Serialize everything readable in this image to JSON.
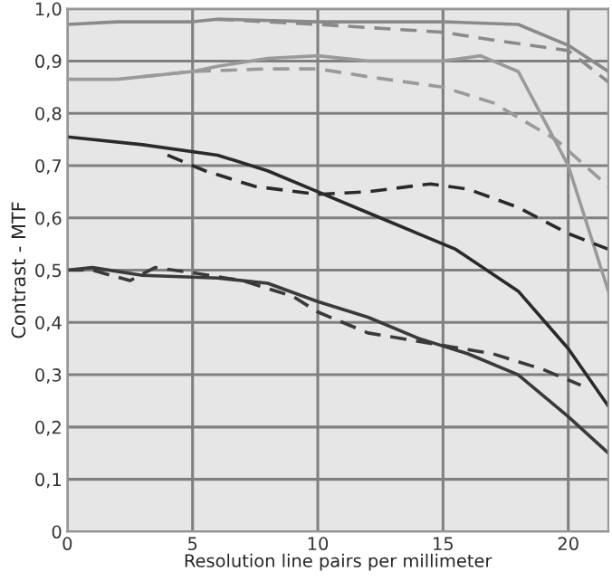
{
  "chart_data": {
    "type": "line",
    "xlabel": "Resolution line pairs per millimeter",
    "ylabel": "Contrast - MTF",
    "xlim": [
      0,
      21.6
    ],
    "ylim": [
      0,
      1.0
    ],
    "xticks": [
      0,
      5,
      10,
      15,
      20
    ],
    "yticks": [
      {
        "value": 0,
        "label": "0"
      },
      {
        "value": 0.1,
        "label": "0,1"
      },
      {
        "value": 0.2,
        "label": "0,2"
      },
      {
        "value": 0.3,
        "label": "0,3"
      },
      {
        "value": 0.4,
        "label": "0,4"
      },
      {
        "value": 0.5,
        "label": "0,5"
      },
      {
        "value": 0.6,
        "label": "0,6"
      },
      {
        "value": 0.7,
        "label": "0,7"
      },
      {
        "value": 0.8,
        "label": "0,8"
      },
      {
        "value": 0.9,
        "label": "0,9"
      },
      {
        "value": 1.0,
        "label": "1,0"
      }
    ],
    "grid": true,
    "marker": "none",
    "series": [
      {
        "color": "#8a8a8a",
        "line_style": "solid",
        "x": [
          0,
          2,
          5,
          6,
          10,
          15,
          18,
          20,
          21.6
        ],
        "values": [
          0.97,
          0.975,
          0.975,
          0.98,
          0.975,
          0.975,
          0.97,
          0.93,
          0.88
        ]
      },
      {
        "color": "#8a8a8a",
        "line_style": "dashed",
        "x": [
          6,
          10,
          15,
          17,
          20,
          21.6
        ],
        "values": [
          0.98,
          0.97,
          0.955,
          0.94,
          0.92,
          0.86
        ]
      },
      {
        "color": "#9a9a9a",
        "line_style": "solid",
        "x": [
          0,
          2,
          5,
          6,
          8,
          10,
          12,
          15,
          16.5,
          18,
          20,
          21.6
        ],
        "values": [
          0.865,
          0.865,
          0.88,
          0.89,
          0.905,
          0.91,
          0.9,
          0.9,
          0.91,
          0.88,
          0.7,
          0.46
        ]
      },
      {
        "color": "#9a9a9a",
        "line_style": "dashed",
        "x": [
          3,
          5,
          8,
          10,
          12,
          15,
          17,
          19.5,
          21.6
        ],
        "values": [
          0.87,
          0.88,
          0.885,
          0.885,
          0.87,
          0.85,
          0.82,
          0.75,
          0.66
        ]
      },
      {
        "color": "#2a2a2a",
        "line_style": "solid",
        "x": [
          0,
          3,
          6,
          8,
          10,
          12,
          14,
          15.5,
          18,
          20,
          21.6
        ],
        "values": [
          0.755,
          0.74,
          0.72,
          0.69,
          0.65,
          0.61,
          0.57,
          0.54,
          0.46,
          0.35,
          0.24
        ]
      },
      {
        "color": "#2a2a2a",
        "line_style": "dashed",
        "x": [
          4,
          5.5,
          7.5,
          10,
          12,
          14.5,
          16,
          18,
          20,
          21.6
        ],
        "values": [
          0.72,
          0.69,
          0.66,
          0.645,
          0.65,
          0.665,
          0.655,
          0.62,
          0.57,
          0.54
        ]
      },
      {
        "color": "#3a3a3a",
        "line_style": "solid",
        "x": [
          0,
          1,
          3,
          6,
          8,
          10,
          12,
          14,
          16,
          18,
          20,
          21.6
        ],
        "values": [
          0.5,
          0.505,
          0.49,
          0.485,
          0.475,
          0.44,
          0.41,
          0.37,
          0.34,
          0.3,
          0.22,
          0.15
        ]
      },
      {
        "color": "#3a3a3a",
        "line_style": "dashed",
        "x": [
          0,
          1,
          2.5,
          3.5,
          5,
          7,
          9,
          10,
          12,
          14.5,
          17,
          19,
          20.5
        ],
        "values": [
          0.5,
          0.5,
          0.48,
          0.505,
          0.495,
          0.48,
          0.45,
          0.42,
          0.38,
          0.36,
          0.34,
          0.31,
          0.28
        ]
      }
    ]
  }
}
